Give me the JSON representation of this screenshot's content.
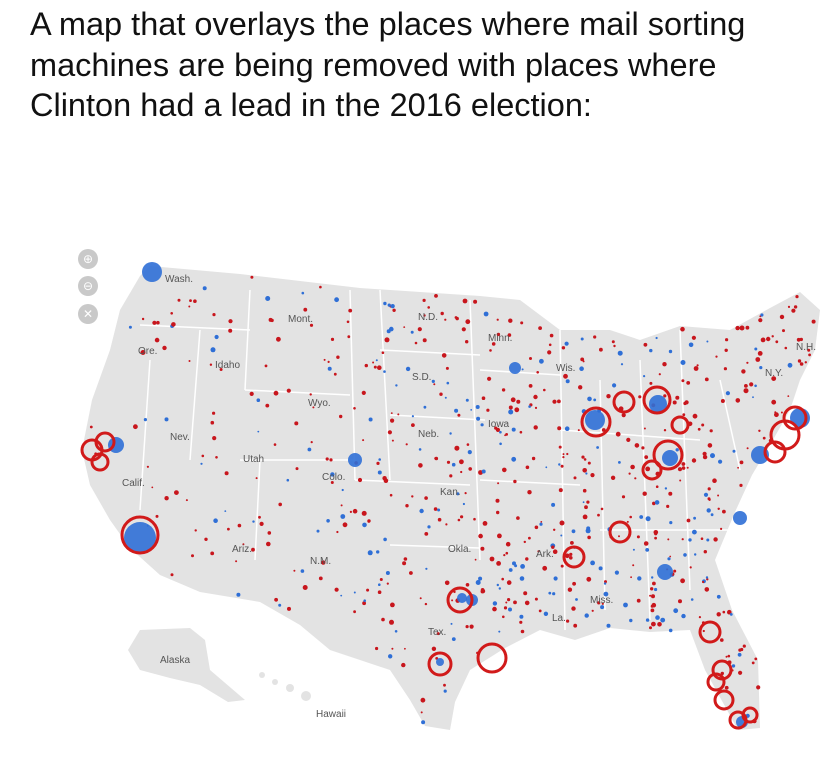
{
  "caption": "A map that overlays the places where mail sorting machines are being removed with places where Clinton had a lead in the 2016 election:",
  "map": {
    "colors": {
      "land": "#e3e3e3",
      "border": "#ffffff",
      "clinton_blue": "#2f6fd6",
      "trump_red": "#c8161d",
      "circle_outline": "#d11a1a"
    },
    "zoom_controls": [
      {
        "icon": "zoom-in-icon",
        "glyph": "⊕"
      },
      {
        "icon": "zoom-out-icon",
        "glyph": "⊖"
      },
      {
        "icon": "reset-icon",
        "glyph": "✕"
      }
    ],
    "state_labels": [
      "Wash.",
      "Ore.",
      "Calif.",
      "Nev.",
      "Idaho",
      "Mont.",
      "Wyo.",
      "Utah",
      "Colo.",
      "Ariz.",
      "N.M.",
      "N.D.",
      "S.D.",
      "Neb.",
      "Kan.",
      "Okla.",
      "Tex.",
      "Minn.",
      "Iowa",
      "Ark.",
      "La.",
      "Miss.",
      "Wis.",
      "N.H.",
      "N.Y.",
      "Alaska",
      "Hawaii"
    ]
  }
}
